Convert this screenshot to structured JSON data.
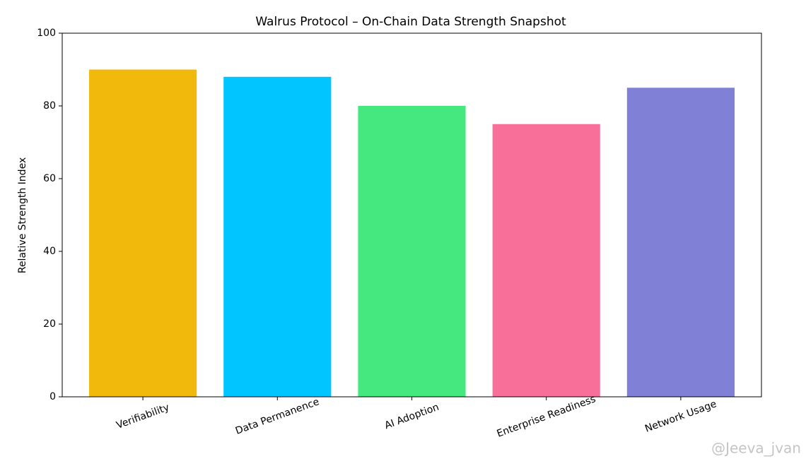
{
  "chart_data": {
    "type": "bar",
    "title": "Walrus Protocol – On-Chain Data Strength Snapshot",
    "y_label": "Relative Strength Index",
    "categories": [
      "Verifiability",
      "Data Permanence",
      "AI Adoption",
      "Enterprise Readiness",
      "Network Usage"
    ],
    "values": [
      90,
      88,
      80,
      75,
      85
    ],
    "colors": [
      "#f0b90b",
      "#00c5ff",
      "#44e87f",
      "#f87099",
      "#8080d6"
    ],
    "ylim": [
      0,
      100
    ],
    "yticks": [
      0,
      20,
      40,
      60,
      80,
      100
    ],
    "grid": false
  },
  "watermark": "@Jeeva_jvan"
}
